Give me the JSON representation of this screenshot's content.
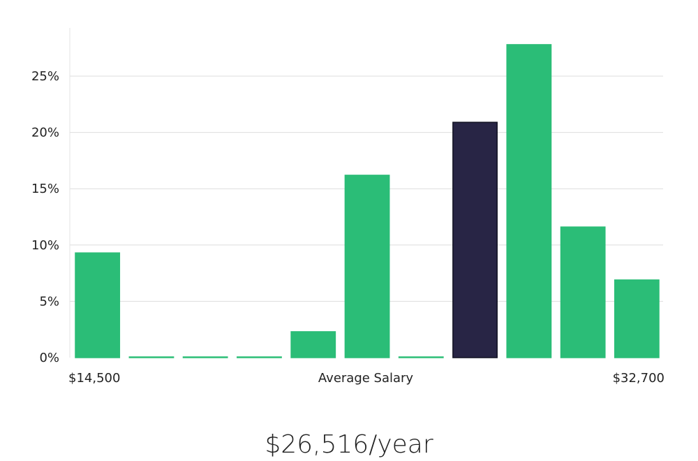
{
  "chart_data": {
    "type": "bar",
    "title": "",
    "xlabel": "Average Salary",
    "x_min_label": "$14,500",
    "x_max_label": "$32,700",
    "ylabel": "",
    "ylim": [
      0,
      29
    ],
    "yticks": [
      0,
      5,
      10,
      15,
      20,
      25
    ],
    "ytick_labels": [
      "0%",
      "5%",
      "10%",
      "15%",
      "20%",
      "25%"
    ],
    "values": [
      9.3,
      0,
      0,
      0,
      2.3,
      16.2,
      0,
      20.9,
      27.8,
      11.6,
      6.9
    ],
    "highlight_index": 7,
    "grid": true,
    "colors": {
      "bar": "#2bbd77",
      "highlight": "#282545",
      "highlight_border": "#111122"
    }
  },
  "summary": {
    "average_salary": "$26,516/year"
  }
}
